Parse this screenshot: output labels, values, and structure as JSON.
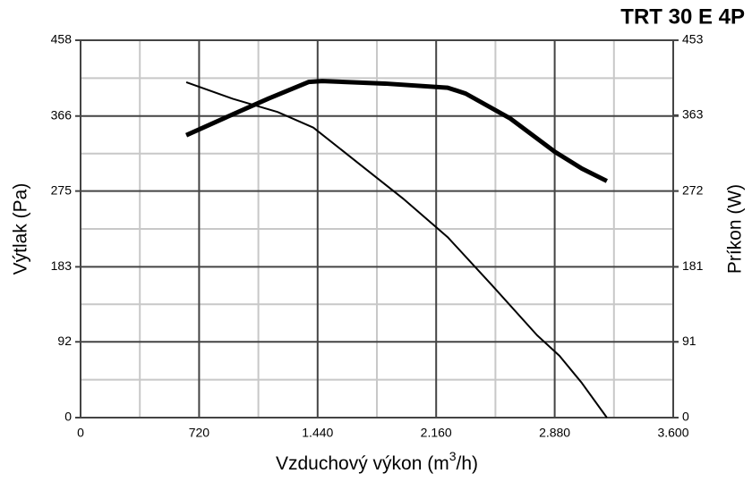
{
  "chart_data": {
    "type": "line",
    "title": "TRT 30 E 4P",
    "x_label": {
      "text": "Vzduchový výkon (m",
      "sup": "3",
      "end": "/h)"
    },
    "y_label": "Výtlak (Pa)",
    "y2_label": "Príkon (W)",
    "xlim": [
      0,
      3600
    ],
    "xticks": [
      0,
      {
        "value": 720,
        "label": "720"
      },
      {
        "value": 1440,
        "label": "1.440"
      },
      {
        "value": 2160,
        "label": "2.160"
      },
      {
        "value": 2880,
        "label": "2.880"
      },
      {
        "value": 3600,
        "label": "3.600"
      }
    ],
    "ylim": [
      0,
      458
    ],
    "yticks": [
      0,
      92,
      183,
      275,
      366,
      458
    ],
    "y2lim": [
      0,
      453
    ],
    "y2ticks": [
      0,
      91,
      181,
      272,
      363,
      453
    ],
    "grid": true,
    "series": [
      {
        "color": "#000000",
        "width": 2,
        "x": [
          642,
          924,
          1196,
          1414,
          1686,
          1958,
          2230,
          2502,
          2773,
          2909,
          3045,
          3197
        ],
        "values": [
          407,
          387,
          371,
          352,
          309,
          266,
          219,
          160,
          100,
          75,
          42,
          0
        ]
      },
      {
        "color": "#000000",
        "width": 5,
        "axis": "y2",
        "x": [
          642,
          924,
          1142,
          1387,
          1468,
          1849,
          2230,
          2339,
          2611,
          2882,
          3045,
          3197
        ],
        "values": [
          339,
          364,
          383,
          403,
          404,
          401,
          396,
          389,
          359,
          319,
          299,
          284
        ]
      }
    ]
  }
}
